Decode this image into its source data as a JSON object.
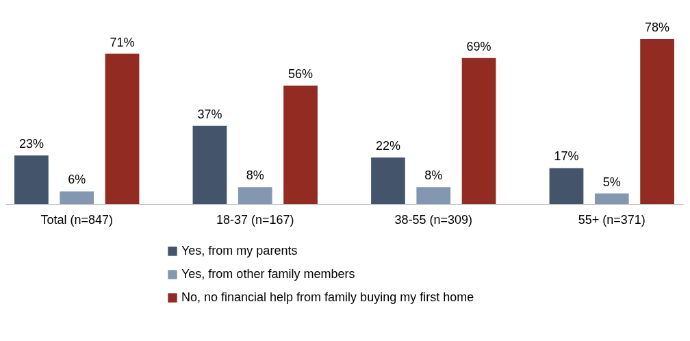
{
  "chart_data": {
    "type": "bar",
    "categories": [
      "Total (n=847)",
      "18-37 (n=167)",
      "38-55 (n=309)",
      "55+ (n=371)"
    ],
    "series": [
      {
        "name": "Yes, from my parents",
        "color": "#44546a",
        "values": [
          23,
          37,
          22,
          17
        ],
        "value_labels": [
          "23%",
          "37%",
          "22%",
          "17%"
        ]
      },
      {
        "name": "Yes, from other family members",
        "color": "#8497b0",
        "values": [
          6,
          8,
          8,
          5
        ],
        "value_labels": [
          "6%",
          "8%",
          "8%",
          "5%"
        ]
      },
      {
        "name": "No, no financial help from family buying my first home",
        "color": "#922b21",
        "values": [
          71,
          56,
          69,
          78
        ],
        "value_labels": [
          "71%",
          "56%",
          "69%",
          "78%"
        ]
      }
    ],
    "legend": "bottom",
    "grid": false
  }
}
